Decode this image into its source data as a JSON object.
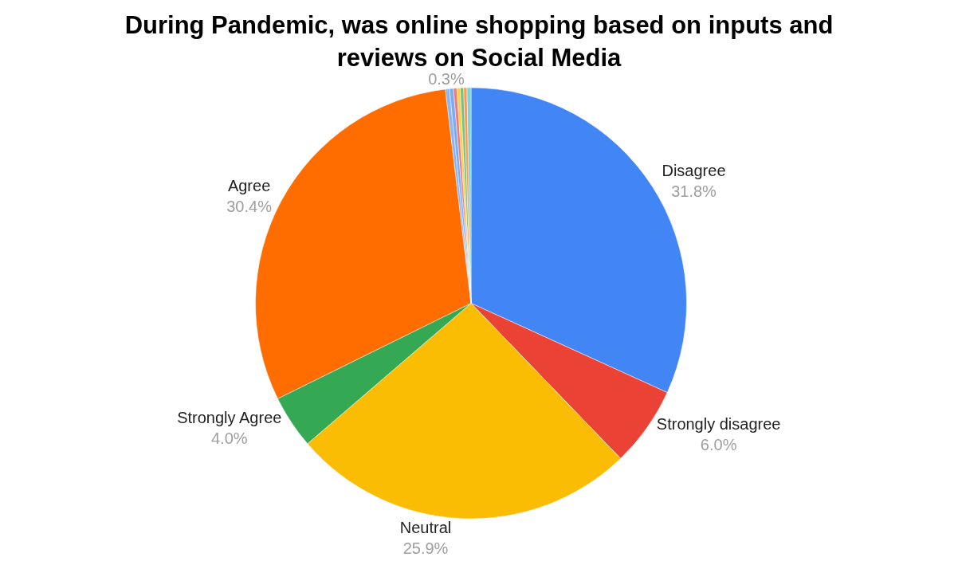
{
  "chart_data": {
    "type": "pie",
    "title": "During Pandemic, was online shopping based on inputs and reviews on Social Media",
    "categories": [
      "Disagree",
      "Strongly disagree",
      "Neutral",
      "Strongly Agree",
      "Agree",
      null,
      null,
      null,
      null,
      null,
      null,
      null
    ],
    "values": [
      31.8,
      6.0,
      25.9,
      4.0,
      30.4,
      0.3,
      0.3,
      0.25,
      0.25,
      0.25,
      0.25,
      0.3
    ],
    "value_labels": [
      "31.8%",
      "6.0%",
      "25.9%",
      "4.0%",
      "30.4%",
      null,
      null,
      null,
      null,
      null,
      null,
      "0.3%"
    ],
    "colors": [
      "#4285f4",
      "#ea4335",
      "#fbbc04",
      "#34a853",
      "#ff6d01",
      "#8ab4f8",
      "#7baaf7",
      "#f07b72",
      "#fcd04f",
      "#71c287",
      "#ff994d",
      "#7ed1d7"
    ],
    "legend": false
  }
}
